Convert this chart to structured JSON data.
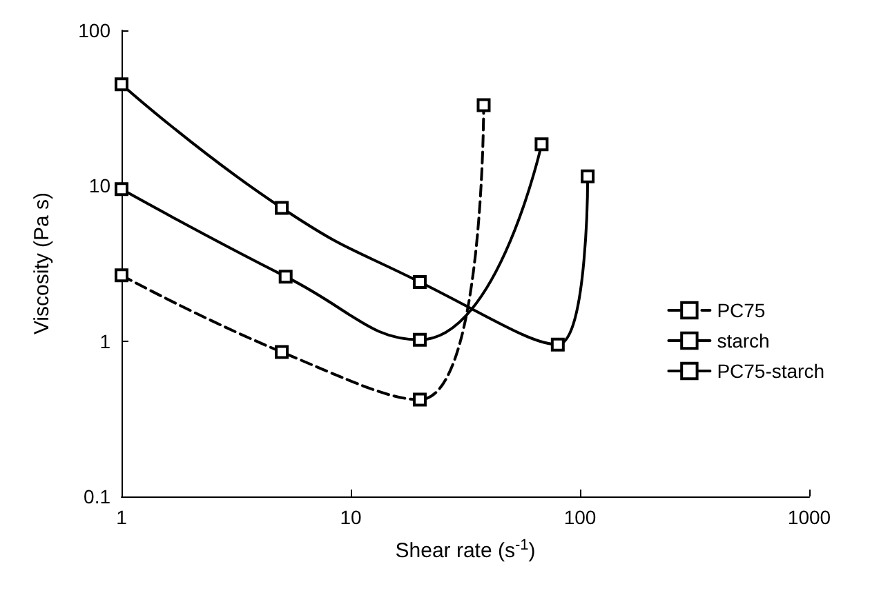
{
  "chart_data": {
    "type": "line",
    "xlabel": "Shear rate (s$^{-1}$)",
    "ylabel": "Viscosity (Pa s)",
    "log": "xy",
    "xlim": [
      1,
      1000
    ],
    "ylim": [
      0.1,
      100
    ],
    "xticks": [
      1,
      10,
      100,
      1000
    ],
    "yticks": [
      0.1,
      1,
      10,
      100
    ],
    "grid": false,
    "legend": "right",
    "marker": "square",
    "series": [
      {
        "name": "PC75",
        "color": "#000000",
        "line_style": "dashed",
        "x": [
          1,
          5,
          20,
          38
        ],
        "values": [
          2.65,
          0.85,
          0.42,
          33
        ]
      },
      {
        "name": "starch",
        "color": "#000000",
        "line_style": "solid",
        "x": [
          1,
          5,
          20,
          80,
          108
        ],
        "values": [
          45,
          7.2,
          2.4,
          0.95,
          11.5
        ]
      },
      {
        "name": "PC75-starch",
        "color": "#000000",
        "line_style": "solid",
        "x": [
          1,
          5.2,
          20,
          68
        ],
        "values": [
          9.5,
          2.6,
          1.02,
          18.5
        ]
      }
    ]
  }
}
